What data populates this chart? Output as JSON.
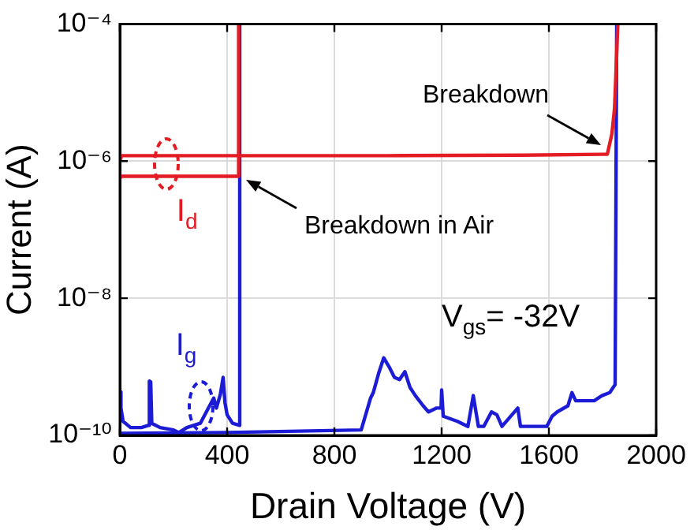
{
  "chart_data": {
    "type": "line",
    "xlabel": "Drain Voltage (V)",
    "ylabel": "Current (A)",
    "xlim": [
      0,
      2000
    ],
    "xticks": [
      0,
      400,
      800,
      1200,
      1600,
      2000
    ],
    "ylim": [
      1e-10,
      0.0001
    ],
    "yticks": [
      {
        "value": 1e-10,
        "label": "10⁻¹⁰"
      },
      {
        "value": 1e-08,
        "label": "10⁻⁸"
      },
      {
        "value": 1e-06,
        "label": "10⁻⁶"
      },
      {
        "value": 0.0001,
        "label": "10⁻⁴"
      }
    ],
    "log": true,
    "grid": true,
    "series": [
      {
        "color": "#e41c24",
        "x": [
          0,
          6,
          443,
          443
        ],
        "values": [
          5.6e-07,
          6e-07,
          6e-07,
          0.0001
        ]
      },
      {
        "color": "#e41c24",
        "x": [
          0,
          6,
          450,
          1000,
          1500,
          1818,
          1835,
          1845,
          1852,
          1857
        ],
        "values": [
          1e-06,
          1.2e-06,
          1.2e-06,
          1.2e-06,
          1.22e-06,
          1.26e-06,
          2.5e-06,
          6e-06,
          3e-05,
          0.0001
        ]
      },
      {
        "color": "#1c1cd6",
        "x": [
          0,
          4,
          12,
          40,
          80,
          106,
          110,
          115,
          119,
          150,
          200,
          220,
          250,
          300,
          330,
          350,
          360,
          375,
          385,
          392,
          400,
          420,
          447,
          447
        ],
        "values": [
          4.3e-10,
          2.5e-10,
          1.6e-10,
          1.3e-10,
          1.3e-10,
          1.4e-10,
          6.2e-10,
          6e-10,
          1.5e-10,
          1.3e-10,
          1.2e-10,
          1.1e-10,
          1.3e-10,
          1.5e-10,
          2.5e-10,
          3.5e-10,
          2.5e-10,
          4e-10,
          7e-10,
          3e-10,
          2e-10,
          1.5e-10,
          1.4e-10,
          0.0001
        ]
      },
      {
        "color": "#1c1cd6",
        "x": [
          0,
          400,
          900,
          935,
          945,
          965,
          984,
          1004,
          1024,
          1043,
          1063,
          1082,
          1102,
          1131,
          1151,
          1180,
          1198,
          1200,
          1206,
          1259,
          1298,
          1318,
          1337,
          1357,
          1386,
          1406,
          1425,
          1484,
          1494,
          1592,
          1612,
          1631,
          1671,
          1686,
          1700,
          1769,
          1798,
          1827,
          1847,
          1853
        ],
        "values": [
          1.07e-10,
          1.1e-10,
          1.2e-10,
          3.5e-10,
          4.2e-10,
          8e-10,
          1.35e-09,
          1e-09,
          7e-10,
          6.5e-10,
          8.5e-10,
          5e-10,
          3.8e-10,
          2.7e-10,
          2.2e-10,
          2.5e-10,
          2.5e-10,
          4.6e-10,
          1.9e-10,
          1.6e-10,
          1.35e-10,
          3.8e-10,
          1.35e-10,
          1.35e-10,
          2.2e-10,
          2e-10,
          1.35e-10,
          2.5e-10,
          1.35e-10,
          1.35e-10,
          1.9e-10,
          2.2e-10,
          2.7e-10,
          4.2e-10,
          3.2e-10,
          3.2e-10,
          3.8e-10,
          4.2e-10,
          5.5e-10,
          0.0001
        ]
      }
    ],
    "annotations": [
      {
        "text": "Breakdown",
        "x": 1818,
        "y": 1.26e-06
      },
      {
        "text": "Breakdown in Air",
        "x": 447,
        "y": 5.9e-07
      },
      {
        "text": "I$_{d}$",
        "x": 176,
        "y": 9e-07
      },
      {
        "text": "I$_{g}$",
        "x": 302,
        "y": 2.7e-10
      },
      "V$_{gs}$= -32V"
    ]
  }
}
